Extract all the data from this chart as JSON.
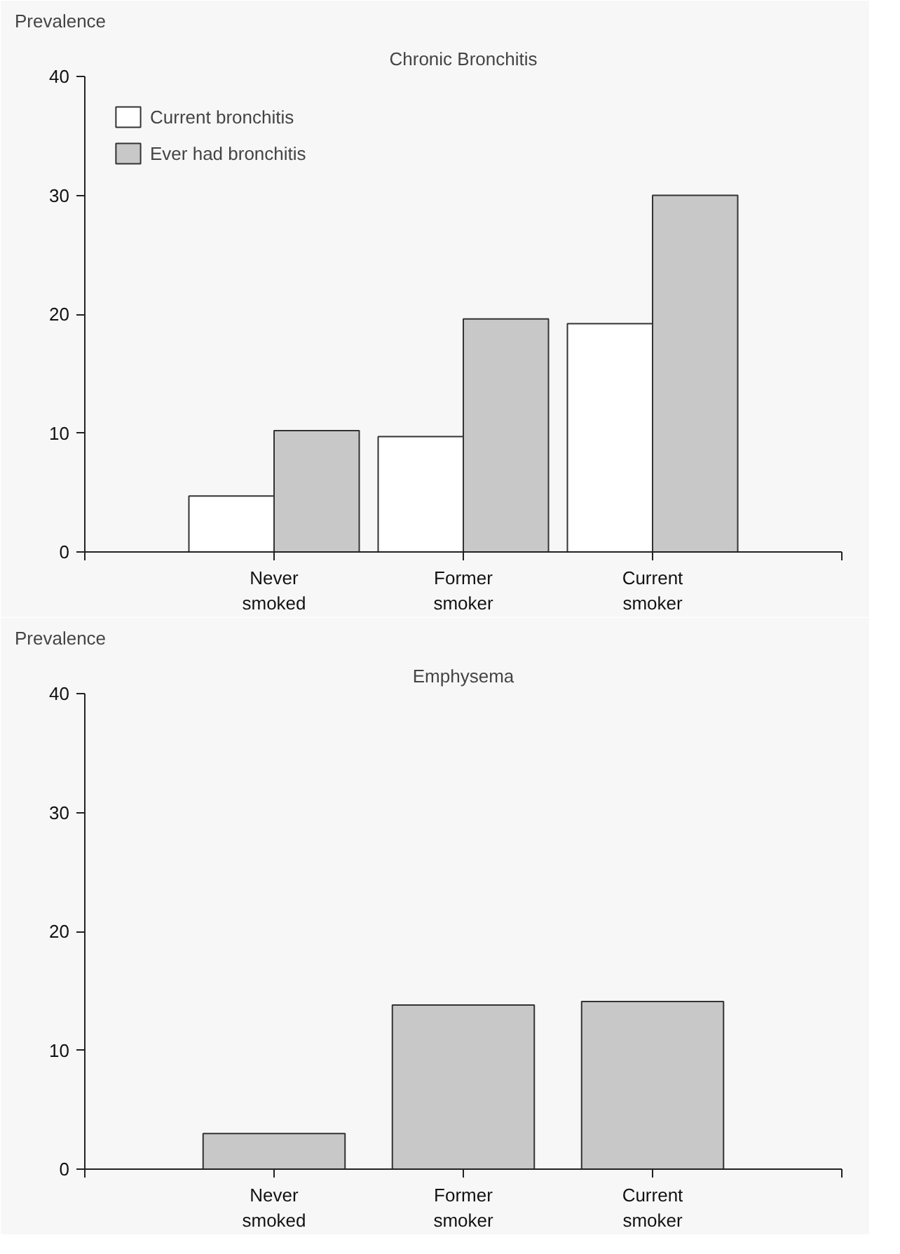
{
  "chart_data": [
    {
      "type": "bar",
      "title": "Chronic Bronchitis",
      "ylabel": "Prevalence",
      "categories": [
        "Never smoked",
        "Former smoker",
        "Current smoker"
      ],
      "series": [
        {
          "name": "Current bronchitis",
          "color": "#ffffff",
          "values": [
            4.7,
            9.7,
            19.2
          ]
        },
        {
          "name": "Ever had bronchitis",
          "color": "#c8c8c8",
          "values": [
            10.2,
            19.6,
            30.0
          ]
        }
      ],
      "ylim": [
        0,
        40
      ],
      "yticks": [
        0,
        10,
        20,
        30,
        40
      ],
      "grid": false,
      "legend": "top left"
    },
    {
      "type": "bar",
      "title": "Emphysema",
      "ylabel": "Prevalence",
      "categories": [
        "Never smoked",
        "Former smoker",
        "Current smoker"
      ],
      "series": [
        {
          "color": "#c8c8c8",
          "values": [
            3.0,
            13.8,
            14.1
          ]
        }
      ],
      "ylim": [
        0,
        40
      ],
      "yticks": [
        0,
        10,
        20,
        30,
        40
      ],
      "grid": false
    }
  ]
}
